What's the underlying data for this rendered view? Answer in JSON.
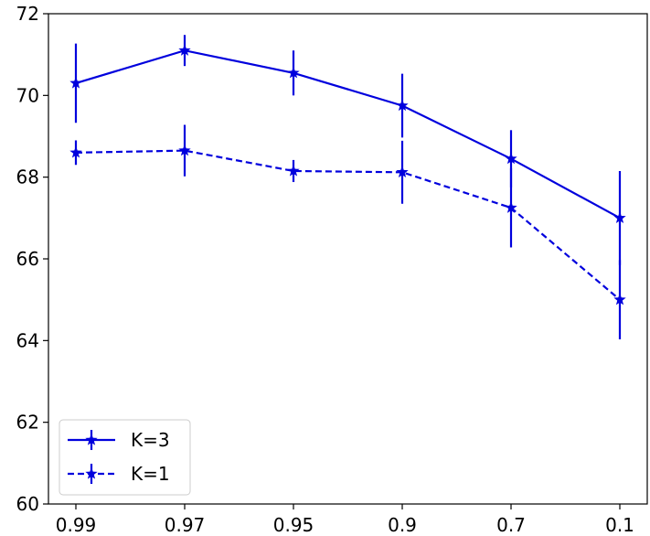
{
  "chart_data": {
    "type": "line",
    "categories": [
      "0.99",
      "0.97",
      "0.95",
      "0.9",
      "0.7",
      "0.1"
    ],
    "ylim": [
      60,
      72
    ],
    "yticks": [
      60,
      62,
      64,
      66,
      68,
      70,
      72
    ],
    "grid": false,
    "legend_position": "lower-left",
    "color": "#0000dd",
    "series": [
      {
        "name": "K=3",
        "style": "solid",
        "values": [
          70.3,
          71.1,
          70.55,
          69.75,
          68.45,
          67.0
        ],
        "errors": [
          0.97,
          0.38,
          0.55,
          0.78,
          0.7,
          1.15
        ]
      },
      {
        "name": "K=1",
        "style": "dashed",
        "values": [
          68.6,
          68.65,
          68.15,
          68.12,
          67.25,
          65.0
        ],
        "errors": [
          0.3,
          0.63,
          0.27,
          0.77,
          0.97,
          0.97
        ]
      }
    ]
  }
}
